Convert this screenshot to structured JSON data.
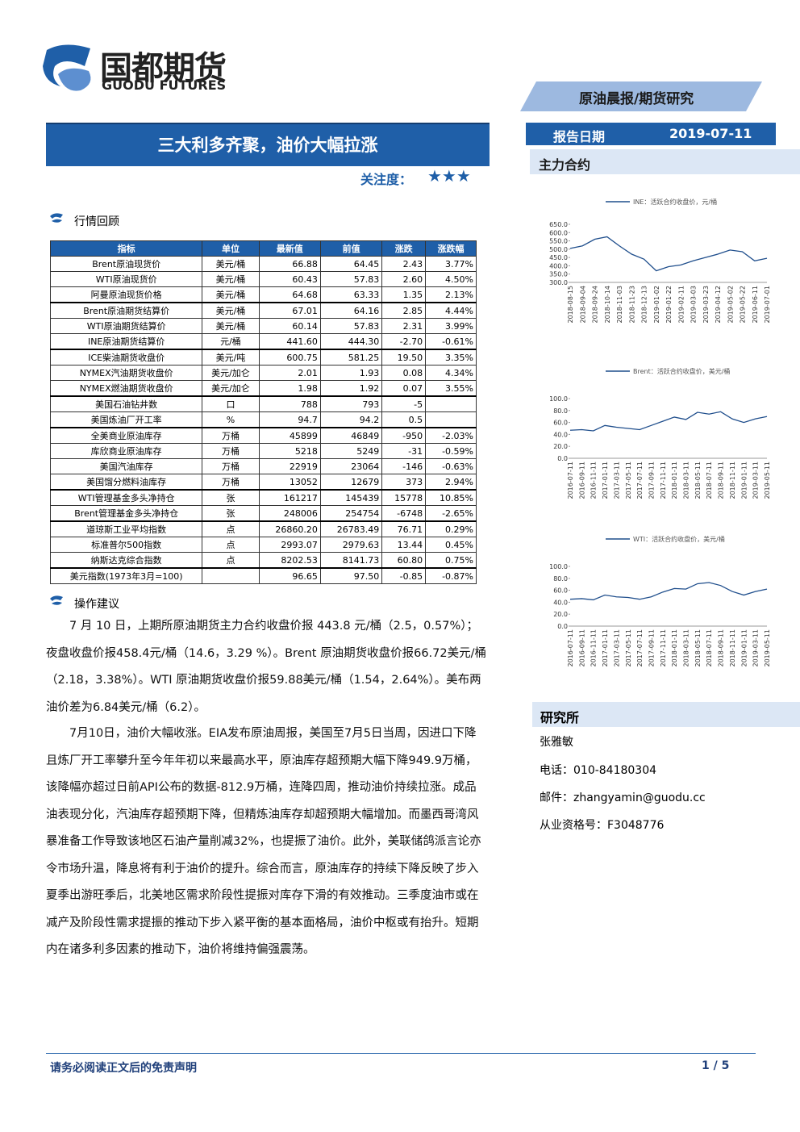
{
  "header": {
    "logo_cn": "国都期货",
    "logo_en": "GUODU FUTURES",
    "tag": "原油晨报/期货研究",
    "title": "三大利多齐聚，油价大幅拉涨",
    "attention_label": "关注度：",
    "attention_stars": "★★★",
    "date_label": "报告日期",
    "date": "2019-07-11"
  },
  "sections": {
    "market": "行情回顾",
    "advice": "操作建议",
    "contracts": "主力合约",
    "research": "研究所"
  },
  "table": {
    "headers": [
      "指标",
      "单位",
      "最新值",
      "前值",
      "涨跌",
      "涨跌幅"
    ],
    "groups": [
      [
        [
          "Brent原油现货价",
          "美元/桶",
          "66.88",
          "64.45",
          "2.43",
          "3.77%"
        ],
        [
          "WTI原油现货价",
          "美元/桶",
          "60.43",
          "57.83",
          "2.60",
          "4.50%"
        ],
        [
          "阿曼原油现货价格",
          "美元/桶",
          "64.68",
          "63.33",
          "1.35",
          "2.13%"
        ]
      ],
      [
        [
          "Brent原油期货结算价",
          "美元/桶",
          "67.01",
          "64.16",
          "2.85",
          "4.44%"
        ],
        [
          "WTI原油期货结算价",
          "美元/桶",
          "60.14",
          "57.83",
          "2.31",
          "3.99%"
        ],
        [
          "INE原油期货结算价",
          "元/桶",
          "441.60",
          "444.30",
          "-2.70",
          "-0.61%"
        ]
      ],
      [
        [
          "ICE柴油期货收盘价",
          "美元/吨",
          "600.75",
          "581.25",
          "19.50",
          "3.35%"
        ],
        [
          "NYMEX汽油期货收盘价",
          "美元/加仑",
          "2.01",
          "1.93",
          "0.08",
          "4.34%"
        ],
        [
          "NYMEX燃油期货收盘价",
          "美元/加仑",
          "1.98",
          "1.92",
          "0.07",
          "3.55%"
        ]
      ],
      [
        [
          "美国石油钻井数",
          "口",
          "788",
          "793",
          "-5",
          null
        ],
        [
          "美国炼油厂开工率",
          "%",
          "94.7",
          "94.2",
          "0.5",
          null
        ]
      ],
      [
        [
          "全美商业原油库存",
          "万桶",
          "45899",
          "46849",
          "-950",
          "-2.03%"
        ],
        [
          "库欣商业原油库存",
          "万桶",
          "5218",
          "5249",
          "-31",
          "-0.59%"
        ],
        [
          "美国汽油库存",
          "万桶",
          "22919",
          "23064",
          "-146",
          "-0.63%"
        ],
        [
          "美国馏分燃料油库存",
          "万桶",
          "13052",
          "12679",
          "373",
          "2.94%"
        ]
      ],
      [
        [
          "WTI管理基金多头净持仓",
          "张",
          "161217",
          "145439",
          "15778",
          "10.85%"
        ],
        [
          "Brent管理基金多头净持仓",
          "张",
          "248006",
          "254754",
          "-6748",
          "-2.65%"
        ]
      ],
      [
        [
          "道琼斯工业平均指数",
          "点",
          "26860.20",
          "26783.49",
          "76.71",
          "0.29%"
        ],
        [
          "标准普尔500指数",
          "点",
          "2993.07",
          "2979.63",
          "13.44",
          "0.45%"
        ],
        [
          "纳斯达克综合指数",
          "点",
          "8202.53",
          "8141.73",
          "60.80",
          "0.75%"
        ]
      ],
      [
        [
          "美元指数(1973年3月=100)",
          null,
          "96.65",
          "97.50",
          "-0.85",
          "-0.87%"
        ]
      ]
    ]
  },
  "paragraphs": [
    "7 月 10 日，上期所原油期货主力合约收盘价报 443.8 元/桶（2.5，0.57%）；夜盘收盘价报458.4元/桶（14.6，3.29 %）。Brent 原油期货收盘价报66.72美元/桶（2.18，3.38%）。WTI 原油期货收盘价报59.88美元/桶（1.54，2.64%）。美布两油价差为6.84美元/桶（6.2）。",
    "7月10日，油价大幅收涨。EIA发布原油周报，美国至7月5日当周，因进口下降且炼厂开工率攀升至今年年初以来最高水平，原油库存超预期大幅下降949.9万桶，该降幅亦超过日前API公布的数据-812.9万桶，连降四周，推动油价持续拉涨。成品油表现分化，汽油库存超预期下降，但精炼油库存却超预期大幅增加。而墨西哥湾风暴准备工作导致该地区石油产量削减32%，也提振了油价。此外，美联储鸽派言论亦令市场升温，降息将有利于油价的提升。综合而言，原油库存的持续下降反映了步入夏季出游旺季后，北美地区需求阶段性提振对库存下滑的有效推动。三季度油市或在减产及阶段性需求提振的推动下步入紧平衡的基本面格局，油价中枢或有抬升。短期内在诸多利多因素的推动下，油价将维持偏强震荡。"
  ],
  "research": {
    "name": "张雅敏",
    "phone": "电话：010-84180304",
    "email": "邮件：zhangyamin@guodu.cc",
    "license": "从业资格号：F3048776"
  },
  "footer": {
    "disclaimer": "请务必阅读正文后的免责声明",
    "page": "1 / 5"
  },
  "chart_data": [
    {
      "type": "line",
      "categories": [
        "2018-08-15",
        "2018-09-04",
        "2018-09-24",
        "2018-10-14",
        "2018-11-03",
        "2018-11-23",
        "2018-12-13",
        "2019-01-02",
        "2019-01-22",
        "2019-02-11",
        "2019-03-03",
        "2019-03-23",
        "2019-04-12",
        "2019-05-02",
        "2019-05-22",
        "2019-06-11",
        "2019-07-01"
      ],
      "series": [
        {
          "name": "INE：活跃合约收盘价，元/桶",
          "color": "#1f4e8c",
          "values": [
            505,
            520,
            560,
            575,
            520,
            470,
            440,
            370,
            395,
            405,
            430,
            450,
            470,
            495,
            485,
            430,
            445
          ]
        }
      ],
      "ylim": [
        300,
        650
      ],
      "yticks": [
        {
          "value": 300,
          "label": "300.0"
        },
        {
          "value": 350,
          "label": "350.0"
        },
        {
          "value": 400,
          "label": "400.0"
        },
        {
          "value": 450,
          "label": "450.0"
        },
        {
          "value": 500,
          "label": "500.0"
        },
        {
          "value": 550,
          "label": "550.0"
        },
        {
          "value": 600,
          "label": "600.0"
        },
        {
          "value": 650,
          "label": "650.0"
        }
      ]
    },
    {
      "type": "line",
      "categories": [
        "2016-07-11",
        "2016-09-11",
        "2016-11-11",
        "2017-01-11",
        "2017-03-11",
        "2017-05-11",
        "2017-07-11",
        "2017-09-11",
        "2017-11-11",
        "2018-01-11",
        "2018-03-11",
        "2018-05-11",
        "2018-07-11",
        "2018-09-11",
        "2018-11-11",
        "2019-01-11",
        "2019-03-11",
        "2019-05-11"
      ],
      "series": [
        {
          "name": "Brent：活跃合约收盘价，美元/桶",
          "color": "#1f4e8c",
          "values": [
            47,
            48,
            46,
            55,
            52,
            50,
            48,
            55,
            62,
            69,
            65,
            77,
            74,
            78,
            66,
            60,
            66,
            70
          ]
        }
      ],
      "ylim": [
        0,
        100
      ],
      "yticks": [
        {
          "value": 0,
          "label": "0.0"
        },
        {
          "value": 20,
          "label": "20.0"
        },
        {
          "value": 40,
          "label": "40.0"
        },
        {
          "value": 60,
          "label": "60.0"
        },
        {
          "value": 80,
          "label": "80.0"
        },
        {
          "value": 100,
          "label": "100.0"
        }
      ]
    },
    {
      "type": "line",
      "categories": [
        "2016-07-11",
        "2016-09-11",
        "2016-11-11",
        "2017-01-11",
        "2017-03-11",
        "2017-05-11",
        "2017-07-11",
        "2017-09-11",
        "2017-11-11",
        "2018-01-11",
        "2018-03-11",
        "2018-05-11",
        "2018-07-11",
        "2018-09-11",
        "2018-11-11",
        "2019-01-11",
        "2019-03-11",
        "2019-05-11"
      ],
      "series": [
        {
          "name": "WTI：活跃合约收盘价，美元/桶",
          "color": "#1f4e8c",
          "values": [
            45,
            46,
            44,
            52,
            49,
            48,
            45,
            49,
            57,
            63,
            62,
            71,
            73,
            68,
            58,
            52,
            58,
            62
          ]
        }
      ],
      "ylim": [
        0,
        100
      ],
      "yticks": [
        {
          "value": 0,
          "label": "0.0"
        },
        {
          "value": 20,
          "label": "20.0"
        },
        {
          "value": 40,
          "label": "40.0"
        },
        {
          "value": 60,
          "label": "60.0"
        },
        {
          "value": 80,
          "label": "80.0"
        },
        {
          "value": 100,
          "label": "100.0"
        }
      ]
    }
  ]
}
